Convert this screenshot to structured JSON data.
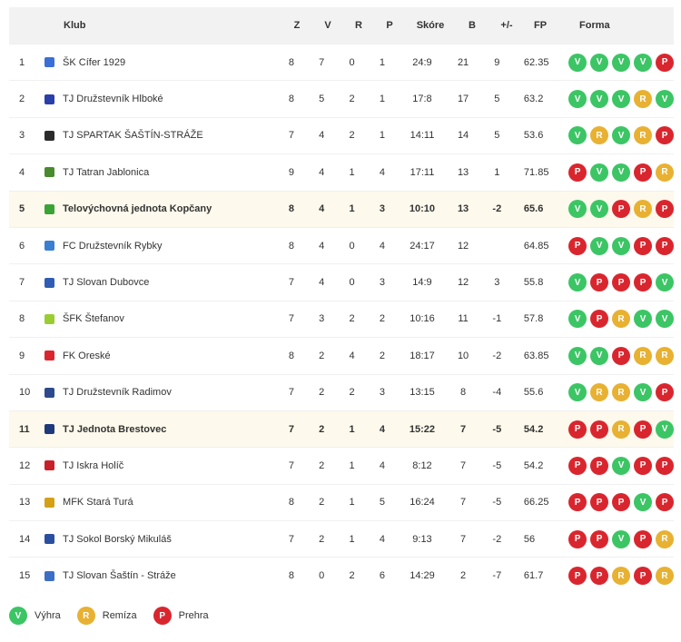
{
  "header": {
    "pos": "",
    "club": "Klub",
    "z": "Z",
    "v": "V",
    "r": "R",
    "p": "P",
    "score": "Skóre",
    "b": "B",
    "diff": "+/-",
    "fp": "FP",
    "form": "Forma"
  },
  "rows": [
    {
      "pos": "1",
      "club": "ŠK Cífer 1929",
      "z": "8",
      "v": "7",
      "r": "0",
      "p": "1",
      "score": "24:9",
      "b": "21",
      "diff": "9",
      "fp": "62.35",
      "form": [
        "V",
        "V",
        "V",
        "V",
        "P"
      ],
      "logo": "#3b6fd6",
      "hl": false
    },
    {
      "pos": "2",
      "club": "TJ Družstevník Hlboké",
      "z": "8",
      "v": "5",
      "r": "2",
      "p": "1",
      "score": "17:8",
      "b": "17",
      "diff": "5",
      "fp": "63.2",
      "form": [
        "V",
        "V",
        "V",
        "R",
        "V"
      ],
      "logo": "#2a3fa8",
      "hl": false
    },
    {
      "pos": "3",
      "club": "TJ SPARTAK ŠAŠTÍN-STRÁŽE",
      "z": "7",
      "v": "4",
      "r": "2",
      "p": "1",
      "score": "14:11",
      "b": "14",
      "diff": "5",
      "fp": "53.6",
      "form": [
        "V",
        "R",
        "V",
        "R",
        "P"
      ],
      "logo": "#2b2b2b",
      "hl": false
    },
    {
      "pos": "4",
      "club": "TJ Tatran Jablonica",
      "z": "9",
      "v": "4",
      "r": "1",
      "p": "4",
      "score": "17:11",
      "b": "13",
      "diff": "1",
      "fp": "71.85",
      "form": [
        "P",
        "V",
        "V",
        "P",
        "R"
      ],
      "logo": "#4a8a2f",
      "hl": false
    },
    {
      "pos": "5",
      "club": "Telovýchovná jednota Kopčany",
      "z": "8",
      "v": "4",
      "r": "1",
      "p": "3",
      "score": "10:10",
      "b": "13",
      "diff": "-2",
      "fp": "65.6",
      "form": [
        "V",
        "V",
        "P",
        "R",
        "P"
      ],
      "logo": "#3aa336",
      "hl": true
    },
    {
      "pos": "6",
      "club": "FC Družstevník Rybky",
      "z": "8",
      "v": "4",
      "r": "0",
      "p": "4",
      "score": "24:17",
      "b": "12",
      "diff": "",
      "fp": "64.85",
      "form": [
        "P",
        "V",
        "V",
        "P",
        "P"
      ],
      "logo": "#3a7fd0",
      "hl": false
    },
    {
      "pos": "7",
      "club": "TJ Slovan Dubovce",
      "z": "7",
      "v": "4",
      "r": "0",
      "p": "3",
      "score": "14:9",
      "b": "12",
      "diff": "3",
      "fp": "55.8",
      "form": [
        "V",
        "P",
        "P",
        "P",
        "V"
      ],
      "logo": "#2f5db3",
      "hl": false
    },
    {
      "pos": "8",
      "club": "ŠFK Štefanov",
      "z": "7",
      "v": "3",
      "r": "2",
      "p": "2",
      "score": "10:16",
      "b": "11",
      "diff": "-1",
      "fp": "57.8",
      "form": [
        "V",
        "P",
        "R",
        "V",
        "V"
      ],
      "logo": "#9acd32",
      "hl": false
    },
    {
      "pos": "9",
      "club": "FK Oreské",
      "z": "8",
      "v": "2",
      "r": "4",
      "p": "2",
      "score": "18:17",
      "b": "10",
      "diff": "-2",
      "fp": "63.85",
      "form": [
        "V",
        "V",
        "P",
        "R",
        "R"
      ],
      "logo": "#d9262e",
      "hl": false
    },
    {
      "pos": "10",
      "club": "TJ Družstevník Radimov",
      "z": "7",
      "v": "2",
      "r": "2",
      "p": "3",
      "score": "13:15",
      "b": "8",
      "diff": "-4",
      "fp": "55.6",
      "form": [
        "V",
        "R",
        "R",
        "V",
        "P"
      ],
      "logo": "#2e4a8c",
      "hl": false
    },
    {
      "pos": "11",
      "club": "TJ Jednota Brestovec",
      "z": "7",
      "v": "2",
      "r": "1",
      "p": "4",
      "score": "15:22",
      "b": "7",
      "diff": "-5",
      "fp": "54.2",
      "form": [
        "P",
        "P",
        "R",
        "P",
        "V"
      ],
      "logo": "#1f3a7a",
      "hl": true
    },
    {
      "pos": "12",
      "club": "TJ Iskra Holíč",
      "z": "7",
      "v": "2",
      "r": "1",
      "p": "4",
      "score": "8:12",
      "b": "7",
      "diff": "-5",
      "fp": "54.2",
      "form": [
        "P",
        "P",
        "V",
        "P",
        "P"
      ],
      "logo": "#c8202a",
      "hl": false
    },
    {
      "pos": "13",
      "club": "MFK Stará Turá",
      "z": "8",
      "v": "2",
      "r": "1",
      "p": "5",
      "score": "16:24",
      "b": "7",
      "diff": "-5",
      "fp": "66.25",
      "form": [
        "P",
        "P",
        "P",
        "V",
        "P"
      ],
      "logo": "#d4a017",
      "hl": false
    },
    {
      "pos": "14",
      "club": "TJ Sokol Borský Mikuláš",
      "z": "7",
      "v": "2",
      "r": "1",
      "p": "4",
      "score": "9:13",
      "b": "7",
      "diff": "-2",
      "fp": "56",
      "form": [
        "P",
        "P",
        "V",
        "P",
        "R"
      ],
      "logo": "#2a4fa0",
      "hl": false
    },
    {
      "pos": "15",
      "club": "TJ Slovan Šaštín - Stráže",
      "z": "8",
      "v": "0",
      "r": "2",
      "p": "6",
      "score": "14:29",
      "b": "2",
      "diff": "-7",
      "fp": "61.7",
      "form": [
        "P",
        "P",
        "R",
        "P",
        "R"
      ],
      "logo": "#3c6ec4",
      "hl": false
    }
  ],
  "legend": [
    {
      "code": "V",
      "label": "Výhra"
    },
    {
      "code": "R",
      "label": "Remíza"
    },
    {
      "code": "P",
      "label": "Prehra"
    }
  ],
  "colors": {
    "win": "#3cc565",
    "draw": "#e8b132",
    "loss": "#d9262e",
    "highlight": "#fdf9ec",
    "header_bg": "#f2f2f2"
  }
}
